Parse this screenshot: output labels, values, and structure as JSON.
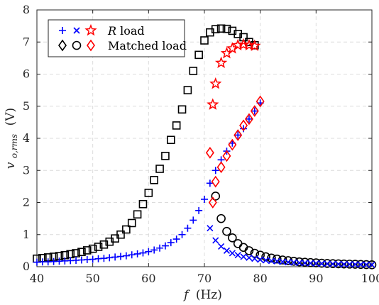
{
  "chart_data": {
    "type": "scatter",
    "xlabel_var": "f",
    "xlabel_unit": "(Hz)",
    "ylabel_var": "v",
    "ylabel_sub": "o,rms",
    "ylabel_unit": "(V)",
    "xlim": [
      40,
      100
    ],
    "ylim": [
      0,
      8
    ],
    "xticks": [
      40,
      50,
      60,
      70,
      80,
      90,
      100
    ],
    "yticks": [
      0,
      1,
      2,
      3,
      4,
      5,
      6,
      7,
      8
    ],
    "grid": true,
    "legend_position": "top-left",
    "legend": [
      {
        "label_var": "R",
        "label_text": " load",
        "markers": [
          "plus-blue",
          "x-blue",
          "star-red"
        ]
      },
      {
        "label_var": "",
        "label_text": "Matched load",
        "markers": [
          "diamond-black",
          "circle-black",
          "diamond-red"
        ]
      }
    ],
    "colors": {
      "blue": "#0000ff",
      "red": "#ff0000",
      "black": "#000000"
    },
    "series": [
      {
        "marker": "square",
        "color": "#000000",
        "x": [
          40,
          41,
          42,
          43,
          44,
          45,
          46,
          47,
          48,
          49,
          50,
          51,
          52,
          53,
          54,
          55,
          56,
          57,
          58,
          59,
          60,
          61,
          62,
          63,
          64,
          65,
          66,
          67,
          68,
          69,
          70,
          71,
          72,
          73,
          74,
          75,
          76,
          77,
          78,
          79
        ],
        "y": [
          0.25,
          0.27,
          0.29,
          0.31,
          0.33,
          0.36,
          0.39,
          0.42,
          0.46,
          0.51,
          0.56,
          0.62,
          0.69,
          0.78,
          0.88,
          1.0,
          1.16,
          1.36,
          1.63,
          1.95,
          2.3,
          2.7,
          3.05,
          3.45,
          3.95,
          4.4,
          4.9,
          5.5,
          6.1,
          6.6,
          7.05,
          7.3,
          7.4,
          7.42,
          7.41,
          7.35,
          7.25,
          7.15,
          7.0,
          6.9
        ]
      },
      {
        "marker": "circle",
        "color": "#000000",
        "x": [
          72,
          73,
          74,
          75,
          76,
          77,
          78,
          79,
          80,
          81,
          82,
          83,
          84,
          85,
          86,
          87,
          88,
          89,
          90,
          91,
          92,
          93,
          94,
          95,
          96,
          97,
          98,
          99,
          100
        ],
        "y": [
          2.2,
          1.5,
          1.1,
          0.9,
          0.72,
          0.6,
          0.5,
          0.42,
          0.36,
          0.31,
          0.27,
          0.24,
          0.21,
          0.19,
          0.17,
          0.15,
          0.14,
          0.13,
          0.12,
          0.11,
          0.1,
          0.095,
          0.09,
          0.085,
          0.08,
          0.075,
          0.07,
          0.065,
          0.06
        ]
      },
      {
        "marker": "plus",
        "color": "#0000ff",
        "x": [
          40,
          41,
          42,
          43,
          44,
          45,
          46,
          47,
          48,
          49,
          50,
          51,
          52,
          53,
          54,
          55,
          56,
          57,
          58,
          59,
          60,
          61,
          62,
          63,
          64,
          65,
          66,
          67,
          68,
          69,
          70,
          71,
          72,
          73,
          74,
          75,
          76,
          77,
          78,
          79,
          80
        ],
        "y": [
          0.14,
          0.15,
          0.15,
          0.16,
          0.17,
          0.18,
          0.19,
          0.2,
          0.21,
          0.22,
          0.23,
          0.25,
          0.26,
          0.28,
          0.3,
          0.32,
          0.34,
          0.37,
          0.4,
          0.43,
          0.47,
          0.52,
          0.58,
          0.65,
          0.75,
          0.86,
          1.0,
          1.2,
          1.45,
          1.75,
          2.1,
          2.6,
          3.0,
          3.33,
          3.6,
          3.85,
          4.1,
          4.3,
          4.6,
          4.85,
          5.1
        ]
      },
      {
        "marker": "x",
        "color": "#0000ff",
        "x": [
          71,
          72,
          73,
          74,
          75,
          76,
          77,
          78,
          79,
          80,
          81,
          82,
          83,
          84,
          85,
          86,
          87,
          88,
          89,
          90,
          91,
          92,
          93,
          94,
          95,
          96,
          97,
          98,
          99,
          100
        ],
        "y": [
          1.2,
          0.82,
          0.63,
          0.5,
          0.42,
          0.36,
          0.31,
          0.28,
          0.25,
          0.22,
          0.2,
          0.18,
          0.17,
          0.15,
          0.14,
          0.13,
          0.12,
          0.115,
          0.11,
          0.1,
          0.095,
          0.09,
          0.085,
          0.08,
          0.077,
          0.074,
          0.07,
          0.067,
          0.064,
          0.06
        ]
      },
      {
        "marker": "star",
        "color": "#ff0000",
        "x": [
          71.5,
          72,
          73,
          74,
          75,
          76,
          77,
          78,
          79
        ],
        "y": [
          5.05,
          5.7,
          6.35,
          6.65,
          6.8,
          6.9,
          6.92,
          6.9,
          6.88
        ]
      },
      {
        "marker": "diamond",
        "color": "#ff0000",
        "x": [
          71,
          71.5,
          72,
          73,
          74,
          75,
          76,
          77,
          78,
          79,
          80
        ],
        "y": [
          3.55,
          2.0,
          2.65,
          3.1,
          3.45,
          3.8,
          4.1,
          4.4,
          4.6,
          4.85,
          5.15
        ]
      }
    ]
  }
}
